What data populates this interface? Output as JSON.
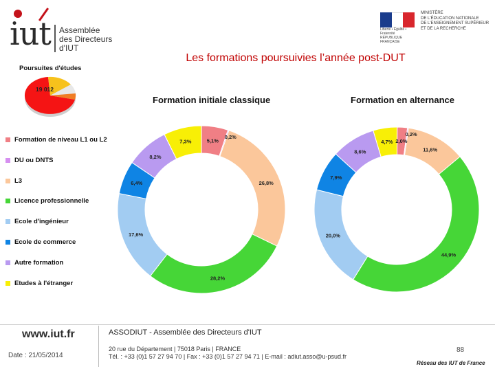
{
  "header": {
    "logo_text": "iut",
    "logo_assoc": "Assemblée des Directeurs d'IUT",
    "ministry_text": "MINISTÈRE\nDE L'ÉDUCATION NATIONALE\nDE L'ENSEIGNEMENT SUPÉRIEUR\nET DE LA RECHERCHE",
    "ministry_sub": "Liberté • Égalité • Fraternité\nRÉPUBLIQUE FRANÇAISE",
    "title": "Les formations poursuivies l’année post-DUT"
  },
  "mini_chart": {
    "title": "Poursuites d'études",
    "label": "19 012"
  },
  "legend": [
    {
      "label": "Formation de niveau L1 ou L2",
      "color": "#f07f85"
    },
    {
      "label": "DU ou DNTS",
      "color": "#d68ff0"
    },
    {
      "label": "L3",
      "color": "#fbc79b"
    },
    {
      "label": "Licence professionnelle",
      "color": "#46d637"
    },
    {
      "label": "Ecole d'ingénieur",
      "color": "#a2ccf2"
    },
    {
      "label": "Ecole de commerce",
      "color": "#0f84e4"
    },
    {
      "label": "Autre formation",
      "color": "#b99af0"
    },
    {
      "label": "Etudes à l'étranger",
      "color": "#f8ef06"
    }
  ],
  "chart_data": [
    {
      "type": "pie",
      "title": "Formation initiale classique",
      "categories": [
        "Etudes à l'étranger",
        "Formation de niveau L1 ou L2",
        "DU ou DNTS",
        "L3",
        "Licence professionnelle",
        "Ecole d'ingénieur",
        "Ecole de commerce",
        "Autre formation"
      ],
      "values": [
        7.3,
        5.1,
        0.2,
        26.8,
        28.2,
        17.6,
        6.4,
        8.2
      ],
      "labels": [
        "7,3%",
        "5,1%",
        "0,2%",
        "26,8%",
        "28,2%",
        "17,6%",
        "6,4%",
        "8,2%"
      ],
      "colors": [
        "#f8ef06",
        "#f07f85",
        "#d68ff0",
        "#fbc79b",
        "#46d637",
        "#a2ccf2",
        "#0f84e4",
        "#b99af0"
      ]
    },
    {
      "type": "pie",
      "title": "Formation en alternance",
      "categories": [
        "Etudes à l'étranger",
        "Formation de niveau L1 ou L2",
        "DU ou DNTS",
        "L3",
        "Licence professionnelle",
        "Ecole d'ingénieur",
        "Ecole de commerce",
        "Autre formation"
      ],
      "values": [
        4.7,
        2.0,
        0.2,
        11.6,
        44.9,
        20.0,
        7.9,
        8.6
      ],
      "labels": [
        "4,7%",
        "2,0%",
        "0,2%",
        "11,6%",
        "44,9%",
        "20,0%",
        "7,9%",
        "8,6%"
      ],
      "colors": [
        "#f8ef06",
        "#f07f85",
        "#d68ff0",
        "#fbc79b",
        "#46d637",
        "#a2ccf2",
        "#0f84e4",
        "#b99af0"
      ]
    }
  ],
  "footer": {
    "url": "www.iut.fr",
    "date": "Date : 21/05/2014",
    "org": "ASSODIUT - Assemblée des Directeurs d'IUT",
    "address1": "20 rue du Département | 75018 Paris | FRANCE",
    "address2": "Tél. : +33 (0)1 57 27 94 70 | Fax : +33 (0)1 57 27 94 71 | E-mail : adiut.asso@u-psud.fr",
    "page": "88",
    "network": "Réseau des IUT de France"
  }
}
